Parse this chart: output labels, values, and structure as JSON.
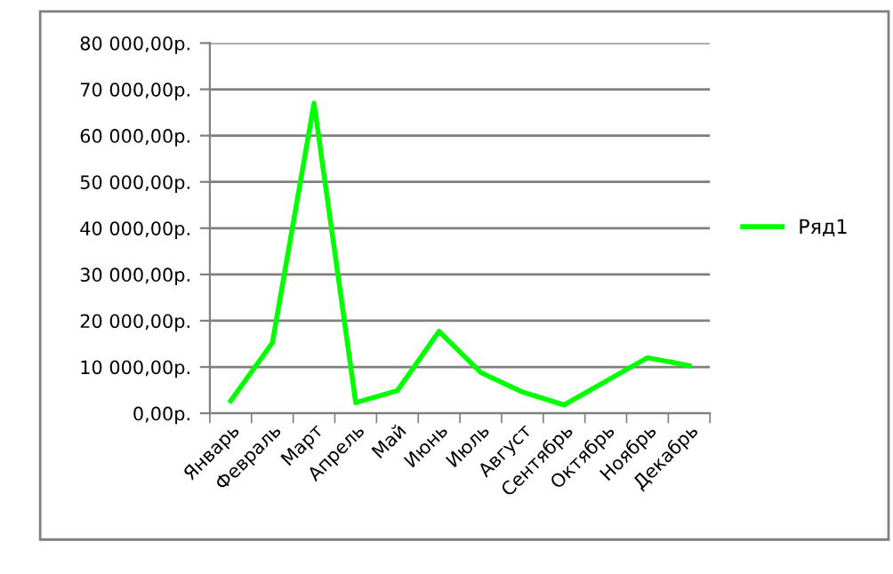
{
  "chart_data": {
    "type": "line",
    "categories": [
      "Январь",
      "Февраль",
      "Март",
      "Апрель",
      "Май",
      "Июнь",
      "Июль",
      "Август",
      "Сентябрь",
      "Октябрь",
      "Ноябрь",
      "Декабрь"
    ],
    "series": [
      {
        "name": "Ряд1",
        "color": "#00ff00",
        "values": [
          2700,
          15200,
          67000,
          2300,
          4900,
          17700,
          8800,
          4600,
          1800,
          6900,
          12000,
          10300
        ]
      }
    ],
    "ylim": [
      0,
      80000
    ],
    "yticks": [
      {
        "value": 0,
        "label": "0,00р."
      },
      {
        "value": 10000,
        "label": "10 000,00р."
      },
      {
        "value": 20000,
        "label": "20 000,00р."
      },
      {
        "value": 30000,
        "label": "30 000,00р."
      },
      {
        "value": 40000,
        "label": "40 000,00р."
      },
      {
        "value": 50000,
        "label": "50 000,00р."
      },
      {
        "value": 60000,
        "label": "60 000,00р."
      },
      {
        "value": 70000,
        "label": "70 000,00р."
      },
      {
        "value": 80000,
        "label": "80 000,00р."
      }
    ],
    "grid": "y",
    "legend": "right",
    "marker": "none",
    "line_style": "solid"
  }
}
